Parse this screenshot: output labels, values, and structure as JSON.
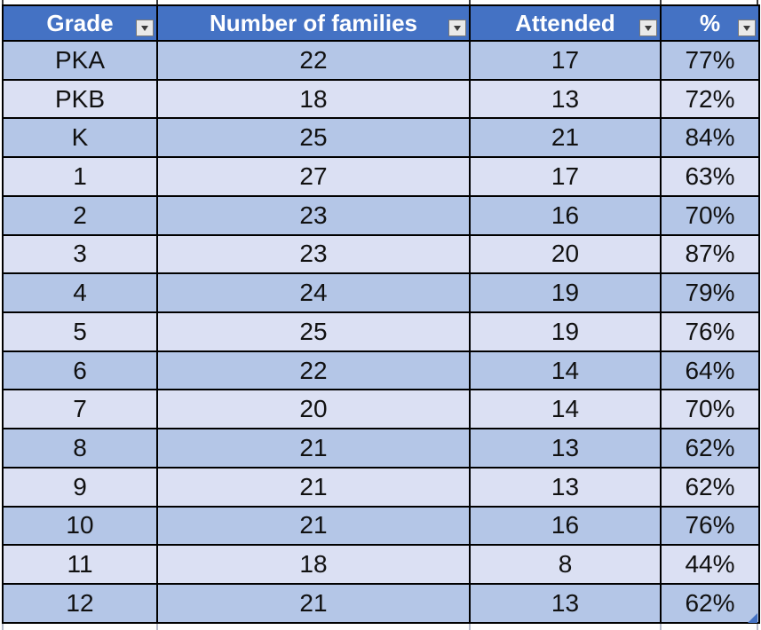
{
  "app": {
    "type": "spreadsheet-table-view"
  },
  "colors": {
    "header_bg": "#4472C4",
    "header_text": "#FFFFFF",
    "band_dark": "#B4C6E7",
    "band_light": "#DBE0F3",
    "grid_border": "#000000",
    "resize_handle": "#4472C4",
    "filter_button_bg": "#E9E9E9",
    "filter_button_border": "#787878"
  },
  "table": {
    "columns": [
      {
        "key": "grade",
        "label": "Grade"
      },
      {
        "key": "families",
        "label": "Number of families"
      },
      {
        "key": "attended",
        "label": "Attended"
      },
      {
        "key": "pct",
        "label": "%"
      }
    ],
    "rows": [
      {
        "grade": "PKA",
        "families": "22",
        "attended": "17",
        "pct": "77%"
      },
      {
        "grade": "PKB",
        "families": "18",
        "attended": "13",
        "pct": "72%"
      },
      {
        "grade": "K",
        "families": "25",
        "attended": "21",
        "pct": "84%"
      },
      {
        "grade": "1",
        "families": "27",
        "attended": "17",
        "pct": "63%"
      },
      {
        "grade": "2",
        "families": "23",
        "attended": "16",
        "pct": "70%"
      },
      {
        "grade": "3",
        "families": "23",
        "attended": "20",
        "pct": "87%"
      },
      {
        "grade": "4",
        "families": "24",
        "attended": "19",
        "pct": "79%"
      },
      {
        "grade": "5",
        "families": "25",
        "attended": "19",
        "pct": "76%"
      },
      {
        "grade": "6",
        "families": "22",
        "attended": "14",
        "pct": "64%"
      },
      {
        "grade": "7",
        "families": "20",
        "attended": "14",
        "pct": "70%"
      },
      {
        "grade": "8",
        "families": "21",
        "attended": "13",
        "pct": "62%"
      },
      {
        "grade": "9",
        "families": "21",
        "attended": "13",
        "pct": "62%"
      },
      {
        "grade": "10",
        "families": "21",
        "attended": "16",
        "pct": "76%"
      },
      {
        "grade": "11",
        "families": "18",
        "attended": "8",
        "pct": "44%"
      },
      {
        "grade": "12",
        "families": "21",
        "attended": "13",
        "pct": "62%"
      }
    ]
  }
}
